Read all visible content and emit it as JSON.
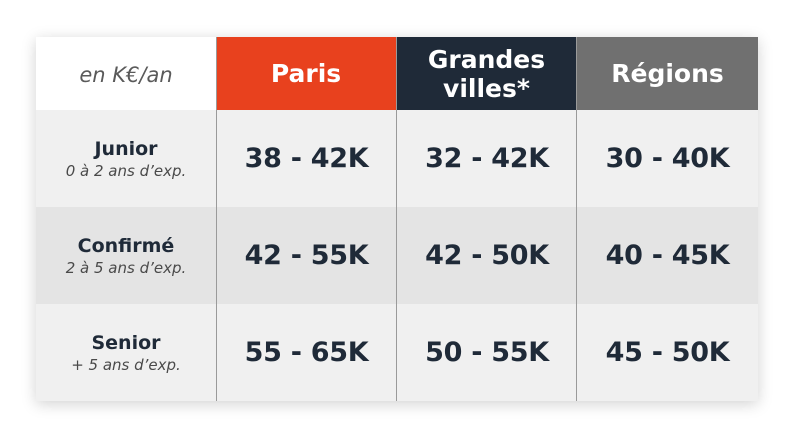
{
  "unit_label": "en K€/an",
  "colors": {
    "paris_header": "#e8411e",
    "grandes_villes_header": "#1f2a38",
    "regions_header": "#707070",
    "text_dark": "#1f2a38",
    "row_light": "#f0f0f0",
    "row_dark": "#e4e4e4"
  },
  "columns": [
    {
      "label": "Paris"
    },
    {
      "label": "Grandes\nvilles*"
    },
    {
      "label": "Régions"
    }
  ],
  "rows": [
    {
      "title": "Junior",
      "subtitle": "0 à 2 ans d’exp.",
      "values": [
        "38 - 42K",
        "32 - 42K",
        "30 - 40K"
      ]
    },
    {
      "title": "Confirmé",
      "subtitle": "2 à 5 ans d’exp.",
      "values": [
        "42 - 55K",
        "42 - 50K",
        "40 - 45K"
      ]
    },
    {
      "title": "Senior",
      "subtitle": "+ 5 ans d’exp.",
      "values": [
        "55 - 65K",
        "50 - 55K",
        "45 - 50K"
      ]
    }
  ]
}
